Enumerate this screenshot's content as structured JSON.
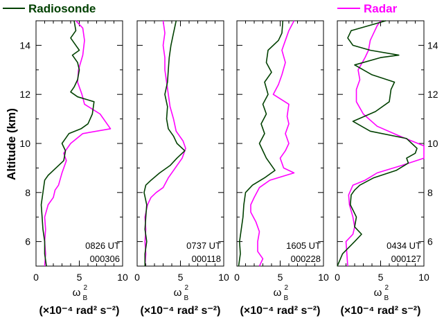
{
  "chart_data": {
    "type": "line",
    "ylabel": "Altitude (km)",
    "ylim": [
      5,
      15
    ],
    "yticks": [
      6,
      8,
      10,
      12,
      14
    ],
    "xlim": [
      0,
      10
    ],
    "xticks": [
      0,
      5,
      10
    ],
    "xlabel_main": "ω",
    "xlabel_sup": "2",
    "xlabel_sub": "B",
    "unit_label": "(×10⁻⁴ rad² s⁻²)",
    "legend": [
      {
        "name": "Radiosonde",
        "color": "#004000"
      },
      {
        "name": "Radar",
        "color": "#ff00ff"
      }
    ],
    "panels": [
      {
        "time": "0826 UT",
        "date": "000306",
        "series": [
          {
            "name": "Radiosonde",
            "points": [
              [
                1.2,
                5.0
              ],
              [
                1.0,
                5.5
              ],
              [
                1.0,
                6.0
              ],
              [
                0.8,
                6.5
              ],
              [
                0.7,
                7.0
              ],
              [
                0.6,
                7.5
              ],
              [
                0.8,
                8.0
              ],
              [
                1.0,
                8.5
              ],
              [
                1.4,
                8.7
              ],
              [
                2.0,
                8.9
              ],
              [
                3.2,
                9.3
              ],
              [
                3.4,
                9.7
              ],
              [
                3.0,
                10.0
              ],
              [
                3.4,
                10.2
              ],
              [
                3.8,
                10.4
              ],
              [
                5.2,
                10.6
              ],
              [
                6.0,
                10.8
              ],
              [
                6.5,
                11.2
              ],
              [
                6.7,
                11.7
              ],
              [
                4.8,
                11.9
              ],
              [
                4.0,
                12.1
              ],
              [
                4.4,
                12.3
              ],
              [
                4.8,
                12.6
              ],
              [
                5.0,
                13.0
              ],
              [
                4.8,
                13.3
              ],
              [
                4.2,
                13.6
              ],
              [
                5.0,
                13.8
              ],
              [
                4.4,
                14.1
              ],
              [
                4.0,
                14.3
              ],
              [
                4.6,
                14.6
              ],
              [
                4.4,
                15.0
              ]
            ]
          },
          {
            "name": "Radar",
            "points": [
              [
                1.0,
                5.0
              ],
              [
                1.1,
                5.5
              ],
              [
                1.0,
                6.0
              ],
              [
                1.1,
                6.5
              ],
              [
                1.0,
                7.0
              ],
              [
                1.4,
                7.5
              ],
              [
                2.0,
                7.8
              ],
              [
                2.2,
                8.1
              ],
              [
                2.6,
                8.3
              ],
              [
                3.0,
                8.8
              ],
              [
                3.5,
                9.3
              ],
              [
                3.2,
                9.6
              ],
              [
                4.0,
                10.0
              ],
              [
                5.4,
                10.4
              ],
              [
                8.6,
                10.6
              ],
              [
                7.4,
                11.2
              ],
              [
                5.6,
                11.6
              ],
              [
                5.3,
                12.0
              ],
              [
                4.8,
                12.5
              ],
              [
                4.9,
                13.0
              ],
              [
                5.4,
                13.6
              ],
              [
                5.6,
                14.2
              ],
              [
                5.4,
                14.7
              ],
              [
                4.6,
                15.0
              ]
            ]
          }
        ]
      },
      {
        "time": "0737 UT",
        "date": "000118",
        "series": [
          {
            "name": "Radiosonde",
            "points": [
              [
                0.9,
                5.0
              ],
              [
                0.9,
                5.5
              ],
              [
                1.1,
                6.0
              ],
              [
                0.9,
                6.5
              ],
              [
                1.0,
                7.0
              ],
              [
                1.1,
                7.5
              ],
              [
                0.8,
                8.0
              ],
              [
                1.0,
                8.3
              ],
              [
                1.6,
                8.5
              ],
              [
                2.6,
                8.8
              ],
              [
                3.8,
                9.1
              ],
              [
                4.6,
                9.4
              ],
              [
                5.5,
                9.7
              ],
              [
                4.6,
                10.0
              ],
              [
                4.2,
                10.3
              ],
              [
                3.6,
                10.6
              ],
              [
                3.4,
                11.0
              ],
              [
                3.5,
                11.5
              ],
              [
                3.2,
                12.0
              ],
              [
                3.5,
                12.5
              ],
              [
                3.6,
                13.0
              ],
              [
                3.7,
                13.5
              ],
              [
                3.9,
                14.0
              ],
              [
                4.2,
                14.5
              ],
              [
                4.5,
                15.0
              ]
            ]
          },
          {
            "name": "Radar",
            "points": [
              [
                0.9,
                5.0
              ],
              [
                1.0,
                5.5
              ],
              [
                0.9,
                6.0
              ],
              [
                1.0,
                6.5
              ],
              [
                0.9,
                7.0
              ],
              [
                1.2,
                7.5
              ],
              [
                1.6,
                7.8
              ],
              [
                2.2,
                8.0
              ],
              [
                3.0,
                8.2
              ],
              [
                3.6,
                8.6
              ],
              [
                4.4,
                9.0
              ],
              [
                5.2,
                9.4
              ],
              [
                5.6,
                9.8
              ],
              [
                5.3,
                10.1
              ],
              [
                4.5,
                10.5
              ],
              [
                4.2,
                11.0
              ],
              [
                3.8,
                11.5
              ],
              [
                3.6,
                12.0
              ],
              [
                3.4,
                12.5
              ],
              [
                3.2,
                13.0
              ],
              [
                3.2,
                13.5
              ],
              [
                3.0,
                14.0
              ],
              [
                3.2,
                14.5
              ],
              [
                3.0,
                15.0
              ]
            ]
          }
        ]
      },
      {
        "time": "1605 UT",
        "date": "000228",
        "series": [
          {
            "name": "Radiosonde",
            "points": [
              [
                0.2,
                5.0
              ],
              [
                0.4,
                5.5
              ],
              [
                0.3,
                6.0
              ],
              [
                0.5,
                6.5
              ],
              [
                0.7,
                7.0
              ],
              [
                0.8,
                7.5
              ],
              [
                1.0,
                8.0
              ],
              [
                1.8,
                8.3
              ],
              [
                3.2,
                8.6
              ],
              [
                4.4,
                8.9
              ],
              [
                3.4,
                9.4
              ],
              [
                3.0,
                9.7
              ],
              [
                2.6,
                10.0
              ],
              [
                3.2,
                10.4
              ],
              [
                2.8,
                10.8
              ],
              [
                3.4,
                11.2
              ],
              [
                3.0,
                11.6
              ],
              [
                3.6,
                12.0
              ],
              [
                3.2,
                12.5
              ],
              [
                4.0,
                12.9
              ],
              [
                3.4,
                13.3
              ],
              [
                3.6,
                13.8
              ],
              [
                4.8,
                14.2
              ],
              [
                5.2,
                14.5
              ],
              [
                5.3,
                15.0
              ]
            ]
          },
          {
            "name": "Radar",
            "points": [
              [
                2.6,
                5.0
              ],
              [
                3.0,
                5.3
              ],
              [
                2.4,
                5.6
              ],
              [
                2.4,
                6.0
              ],
              [
                2.6,
                6.4
              ],
              [
                2.2,
                6.8
              ],
              [
                1.6,
                7.2
              ],
              [
                1.6,
                7.5
              ],
              [
                2.0,
                7.8
              ],
              [
                2.6,
                8.2
              ],
              [
                3.8,
                8.5
              ],
              [
                6.6,
                8.8
              ],
              [
                5.4,
                9.0
              ],
              [
                5.0,
                9.4
              ],
              [
                5.6,
                9.7
              ],
              [
                6.0,
                10.0
              ],
              [
                5.6,
                10.4
              ],
              [
                6.0,
                10.8
              ],
              [
                5.8,
                11.1
              ],
              [
                6.0,
                11.6
              ],
              [
                4.2,
                12.0
              ],
              [
                4.8,
                12.4
              ],
              [
                5.2,
                12.8
              ],
              [
                5.6,
                13.3
              ],
              [
                5.2,
                13.8
              ],
              [
                5.6,
                14.2
              ],
              [
                6.0,
                14.6
              ],
              [
                6.6,
                15.0
              ]
            ]
          }
        ]
      },
      {
        "time": "0434 UT",
        "date": "000127",
        "series": [
          {
            "name": "Radiosonde",
            "points": [
              [
                0.0,
                5.0
              ],
              [
                0.6,
                5.5
              ],
              [
                2.0,
                6.0
              ],
              [
                2.8,
                6.3
              ],
              [
                2.0,
                6.6
              ],
              [
                2.2,
                7.0
              ],
              [
                1.5,
                7.5
              ],
              [
                1.6,
                7.9
              ],
              [
                2.0,
                8.1
              ],
              [
                2.6,
                8.3
              ],
              [
                4.2,
                8.6
              ],
              [
                6.8,
                8.9
              ],
              [
                8.2,
                9.2
              ],
              [
                8.0,
                9.4
              ],
              [
                9.0,
                9.6
              ],
              [
                9.2,
                9.8
              ],
              [
                8.6,
                10.0
              ],
              [
                8.0,
                10.2
              ],
              [
                3.8,
                10.5
              ],
              [
                1.8,
                10.9
              ],
              [
                4.4,
                11.3
              ],
              [
                6.0,
                11.7
              ],
              [
                6.2,
                12.2
              ],
              [
                6.6,
                12.5
              ],
              [
                4.0,
                12.8
              ],
              [
                2.0,
                13.2
              ],
              [
                5.0,
                13.5
              ],
              [
                7.1,
                13.6
              ],
              [
                3.8,
                13.8
              ],
              [
                1.8,
                14.0
              ],
              [
                1.2,
                14.3
              ],
              [
                1.6,
                14.6
              ],
              [
                5.6,
                15.0
              ]
            ]
          },
          {
            "name": "Radar",
            "points": [
              [
                1.2,
                5.0
              ],
              [
                1.1,
                5.5
              ],
              [
                1.0,
                6.0
              ],
              [
                1.8,
                6.3
              ],
              [
                2.0,
                6.6
              ],
              [
                1.8,
                7.0
              ],
              [
                1.4,
                7.5
              ],
              [
                1.3,
                7.9
              ],
              [
                1.8,
                8.3
              ],
              [
                3.2,
                8.5
              ],
              [
                4.6,
                8.8
              ],
              [
                7.4,
                9.1
              ],
              [
                10.0,
                9.4
              ],
              [
                10.0,
                9.9
              ],
              [
                7.2,
                10.3
              ],
              [
                4.6,
                10.7
              ],
              [
                3.0,
                11.2
              ],
              [
                2.2,
                11.7
              ],
              [
                2.2,
                12.2
              ],
              [
                2.6,
                12.6
              ],
              [
                2.4,
                13.0
              ],
              [
                3.2,
                13.5
              ],
              [
                3.6,
                13.8
              ],
              [
                3.8,
                14.2
              ],
              [
                4.2,
                14.5
              ],
              [
                4.6,
                14.8
              ],
              [
                5.0,
                15.0
              ]
            ]
          }
        ]
      }
    ]
  }
}
